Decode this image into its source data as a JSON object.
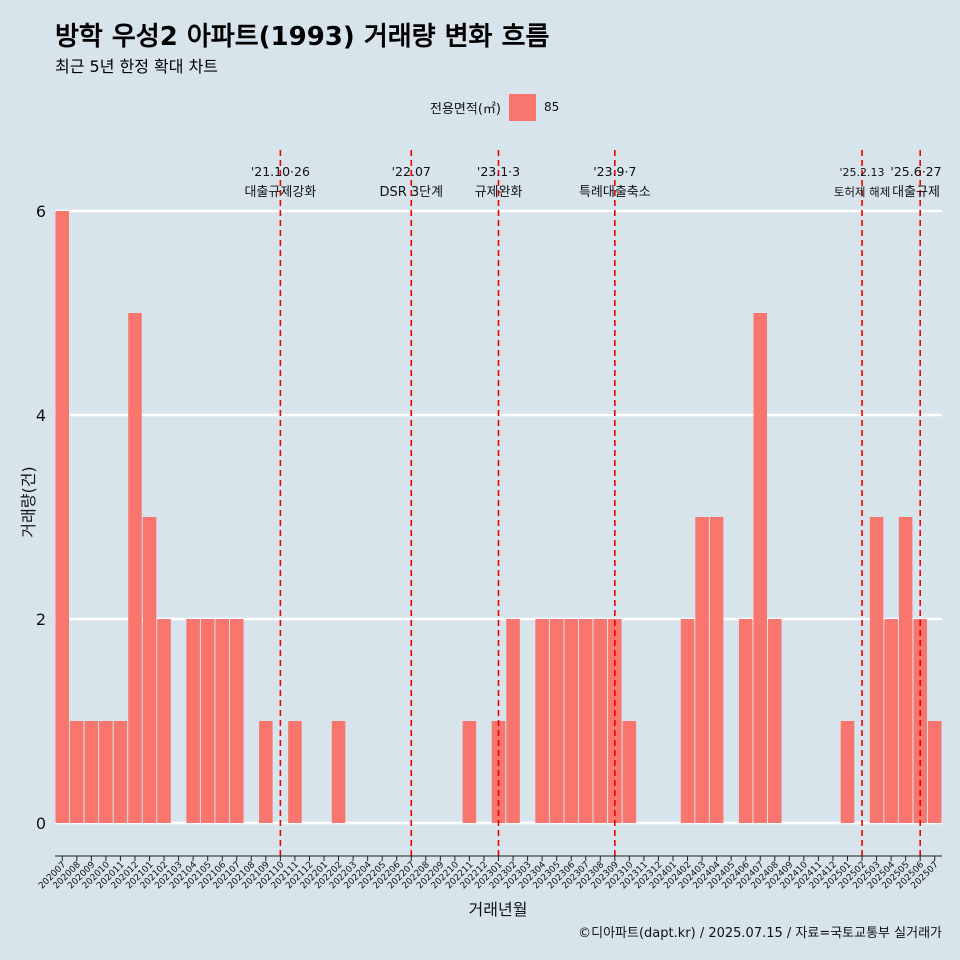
{
  "title": "방학 우성2 아파트(1993) 거래량 변화 흐름",
  "subtitle": "최근 5년 한정 확대 차트",
  "caption": "©디아파트(dapt.kr) / 2025.07.15 / 자료=국토교통부 실거래가",
  "colors": {
    "background": "#d7e4ec",
    "bar": "#f8766d",
    "grid": "#ffffff",
    "event_line": "#ee0000"
  },
  "chart_data": {
    "type": "bar",
    "xlabel": "거래년월",
    "ylabel": "거래량(건)",
    "ylim": [
      0,
      6
    ],
    "yticks": [
      0,
      2,
      4,
      6
    ],
    "grid": true,
    "legend": {
      "title": "전용면적(㎡)",
      "position": "top",
      "entries": [
        "85"
      ]
    },
    "categories": [
      "202007",
      "202008",
      "202009",
      "202010",
      "202011",
      "202012",
      "202101",
      "202102",
      "202103",
      "202104",
      "202105",
      "202106",
      "202107",
      "202108",
      "202109",
      "202110",
      "202111",
      "202112",
      "202201",
      "202202",
      "202203",
      "202204",
      "202205",
      "202206",
      "202207",
      "202208",
      "202209",
      "202210",
      "202211",
      "202212",
      "202301",
      "202302",
      "202303",
      "202304",
      "202305",
      "202306",
      "202307",
      "202308",
      "202309",
      "202310",
      "202311",
      "202312",
      "202401",
      "202402",
      "202403",
      "202404",
      "202405",
      "202406",
      "202407",
      "202408",
      "202409",
      "202410",
      "202411",
      "202412",
      "202501",
      "202502",
      "202503",
      "202504",
      "202505",
      "202506",
      "202507"
    ],
    "series": [
      {
        "name": "85",
        "values": [
          6,
          1,
          1,
          1,
          1,
          5,
          3,
          2,
          0,
          2,
          2,
          2,
          2,
          0,
          1,
          0,
          1,
          0,
          0,
          1,
          0,
          0,
          0,
          0,
          0,
          0,
          0,
          0,
          1,
          0,
          1,
          2,
          0,
          2,
          2,
          2,
          2,
          2,
          2,
          1,
          0,
          0,
          0,
          2,
          3,
          3,
          0,
          2,
          5,
          2,
          0,
          0,
          0,
          0,
          1,
          0,
          3,
          2,
          3,
          2,
          1
        ]
      }
    ],
    "annotations": [
      {
        "x": "202110",
        "date": "'21.10·26",
        "label": "대출규제강화"
      },
      {
        "x": "202207",
        "date": "'22.07",
        "label": "DSR 3단계"
      },
      {
        "x": "202301",
        "date": "'23.1·3",
        "label": "규제완화"
      },
      {
        "x": "202309",
        "date": "'23.9·7",
        "label": "특례대출축소"
      },
      {
        "x": "202502",
        "date": "'25.2.13",
        "label": "토허제 해제"
      },
      {
        "x": "202506",
        "date": "'25.6·27",
        "label": "대출규제"
      }
    ]
  }
}
